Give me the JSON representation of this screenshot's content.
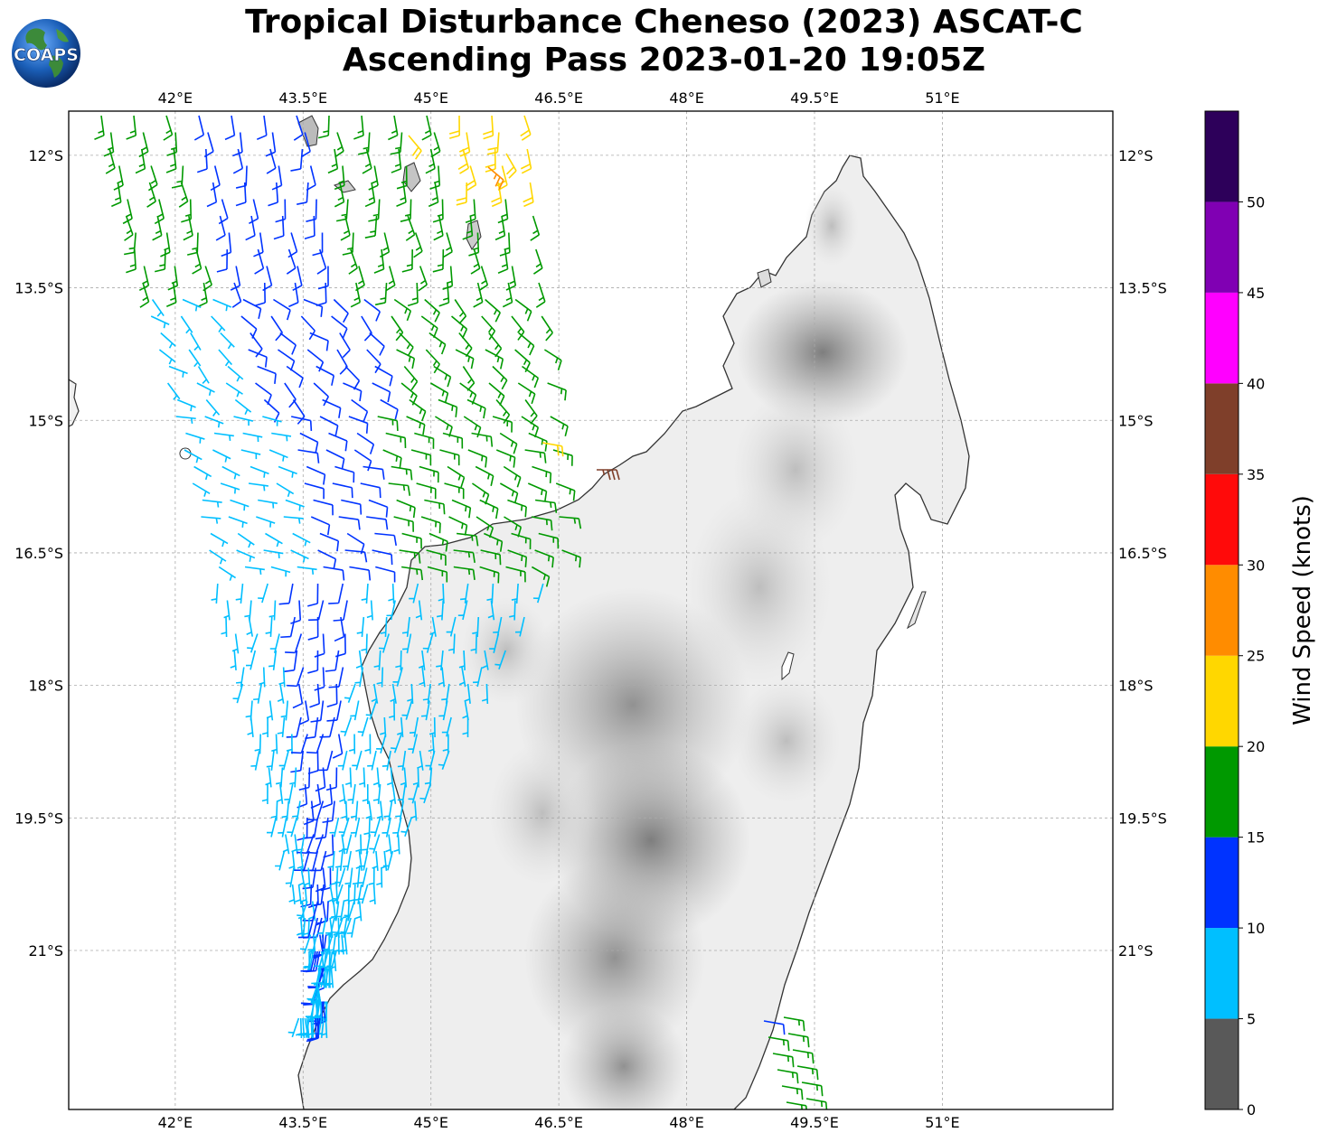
{
  "title": {
    "line1": "Tropical Disturbance Cheneso (2023) ASCAT-C",
    "line2": "Ascending Pass 2023-01-20 19:05Z"
  },
  "logo": {
    "text": "COAPS",
    "icon": "globe-logo-icon"
  },
  "map": {
    "lon_range": [
      40.75,
      53.0
    ],
    "lat_range": [
      -22.8,
      -11.5
    ],
    "lon_ticks": [
      {
        "v": 42.0,
        "label": "42°E"
      },
      {
        "v": 43.5,
        "label": "43.5°E"
      },
      {
        "v": 45.0,
        "label": "45°E"
      },
      {
        "v": 46.5,
        "label": "46.5°E"
      },
      {
        "v": 48.0,
        "label": "48°E"
      },
      {
        "v": 49.5,
        "label": "49.5°E"
      },
      {
        "v": 51.0,
        "label": "51°E"
      }
    ],
    "lat_ticks": [
      {
        "v": -12.0,
        "label": "12°S"
      },
      {
        "v": -13.5,
        "label": "13.5°S"
      },
      {
        "v": -15.0,
        "label": "15°S"
      },
      {
        "v": -16.5,
        "label": "16.5°S"
      },
      {
        "v": -18.0,
        "label": "18°S"
      },
      {
        "v": -19.5,
        "label": "19.5°S"
      },
      {
        "v": -21.0,
        "label": "21°S"
      }
    ],
    "gridlines": true,
    "background": "grayscale topography",
    "land": "Madagascar"
  },
  "colorbar": {
    "label": "Wind Speed (knots)",
    "tick_labels": [
      "0",
      "5",
      "10",
      "15",
      "20",
      "25",
      "30",
      "35",
      "40",
      "45",
      "50"
    ],
    "bins": [
      {
        "min": 0,
        "max": 5,
        "color": "#595959"
      },
      {
        "min": 5,
        "max": 10,
        "color": "#00bfff"
      },
      {
        "min": 10,
        "max": 15,
        "color": "#0033ff"
      },
      {
        "min": 15,
        "max": 20,
        "color": "#009900"
      },
      {
        "min": 20,
        "max": 25,
        "color": "#ffd700"
      },
      {
        "min": 25,
        "max": 30,
        "color": "#ff8c00"
      },
      {
        "min": 30,
        "max": 35,
        "color": "#ff0a0a"
      },
      {
        "min": 35,
        "max": 40,
        "color": "#7f3f2a"
      },
      {
        "min": 40,
        "max": 45,
        "color": "#ff00ff"
      },
      {
        "min": 45,
        "max": 50,
        "color": "#8000b3"
      },
      {
        "min": 50,
        "max": 55,
        "color": "#2d005a"
      }
    ]
  }
}
